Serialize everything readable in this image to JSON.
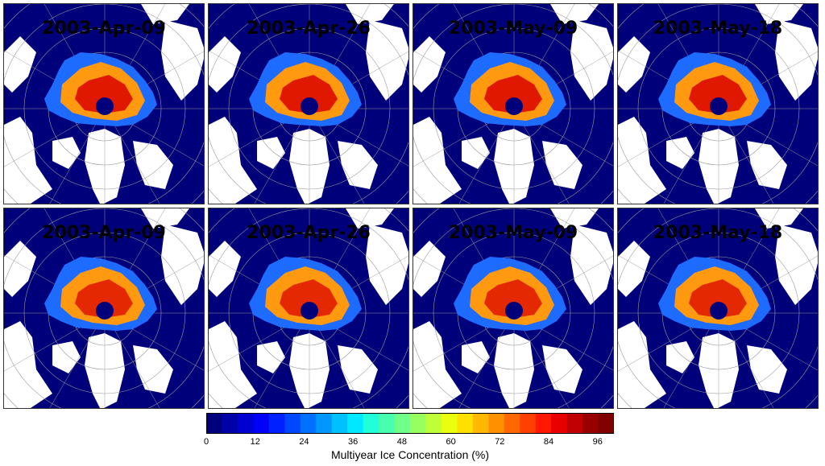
{
  "panels": [
    {
      "title": "2003-Apr-09"
    },
    {
      "title": "2003-Apr-26"
    },
    {
      "title": "2003-May-09"
    },
    {
      "title": "2003-May-18"
    },
    {
      "title": "2003-Apr-09"
    },
    {
      "title": "2003-Apr-26"
    },
    {
      "title": "2003-May-09"
    },
    {
      "title": "2003-May-18"
    }
  ],
  "colorbar": {
    "label": "Multiyear Ice Concentration (%)",
    "min": 0,
    "max": 100,
    "ticks": [
      "0",
      "12",
      "24",
      "36",
      "48",
      "60",
      "72",
      "84",
      "96"
    ],
    "colors": [
      "#00007f",
      "#0000a8",
      "#0000d0",
      "#0000f8",
      "#0020ff",
      "#0048ff",
      "#0070ff",
      "#0098ff",
      "#00c0ff",
      "#00e8ff",
      "#20ffd8",
      "#48ffb0",
      "#70ff88",
      "#98ff60",
      "#c0ff38",
      "#e8ff10",
      "#ffe000",
      "#ffb800",
      "#ff9000",
      "#ff6800",
      "#ff4000",
      "#ff1800",
      "#e80000",
      "#c00000",
      "#980000",
      "#800000"
    ]
  },
  "map_colors": {
    "ocean": "#00007a",
    "land": "#ffffff",
    "pole_hole": "#00007a",
    "grid": "#9a9a9a"
  }
}
